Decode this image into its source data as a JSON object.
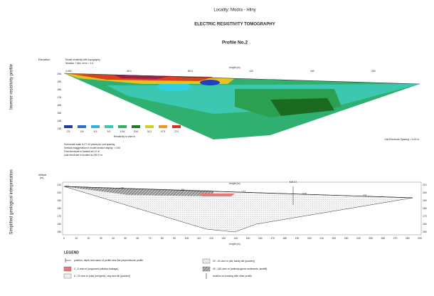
{
  "header": {
    "locality": "Locality: Modra - Hliny",
    "title": "ELECTRIC RESISTIVITY TOMOGRAPHY",
    "profile": "Profile No.2"
  },
  "inverse_profile": {
    "side_label": "Inverse resistivity profile",
    "elevation_label": "Elevation",
    "model_label": "Model resistivity with topography",
    "iteration_label": "Iteration 7 Abs. error = 4.4",
    "length_label": "length (m)",
    "x_labels": [
      "0.000",
      "40.0",
      "80.0",
      "120",
      "160",
      "200"
    ],
    "y_labels": [
      "206",
      "196",
      "186",
      "176",
      "166",
      "156",
      "146",
      "136"
    ],
    "scale_values": [
      "2.5",
      "3.8",
      "5.9",
      "9.0",
      "13.6",
      "20.6",
      "31.2",
      "47.5",
      "72.0"
    ],
    "scale_label": "Resistivity in ohm.m",
    "spacing_note": "Unit Electrode Spacing = 5.00 m.",
    "notes": [
      "Horizontal scale is 27.34 pixels per unit spacing",
      "Vertical exaggeration in model section display = 0.60",
      "First electrode is located at 0.0 m.",
      "Last electrode is located at 290.0 m."
    ]
  },
  "geological": {
    "side_label": "Simplified geological interpretation",
    "altitude_label": "Altitude",
    "altitude_unit": "(m)",
    "length_label_top": "length (m)",
    "length_label_bottom": "length (m)",
    "crossing_label": "MH-07",
    "surface_labels": [
      "0.0",
      "40",
      "80",
      "112",
      "176",
      "231"
    ],
    "x_labels": [
      "0",
      "10",
      "20",
      "30",
      "40",
      "50",
      "60",
      "70",
      "80",
      "90",
      "100",
      "110",
      "120",
      "130",
      "140",
      "150",
      "160",
      "170",
      "180",
      "190",
      "200",
      "210",
      "220",
      "230",
      "240",
      "250",
      "260",
      "270",
      "280",
      "290"
    ],
    "y_labels": [
      "210",
      "200",
      "190",
      "180",
      "170",
      "160",
      "150"
    ]
  },
  "legend": {
    "title": "LEGEND",
    "items": [
      "position, depth and name of profile near the perpendicular profile",
      "2 - 6 ohm.m (supposed pollution leakage)",
      "6 - 20 ohm.m (clay (neogene), clay and silt (quarter))",
      "20 - 40 ohm.m (silt, sandy silt (quarter))",
      "40 - 150 ohm.m (anthropogenic sediments, landfill)",
      "location of crossing with other profile"
    ]
  }
}
